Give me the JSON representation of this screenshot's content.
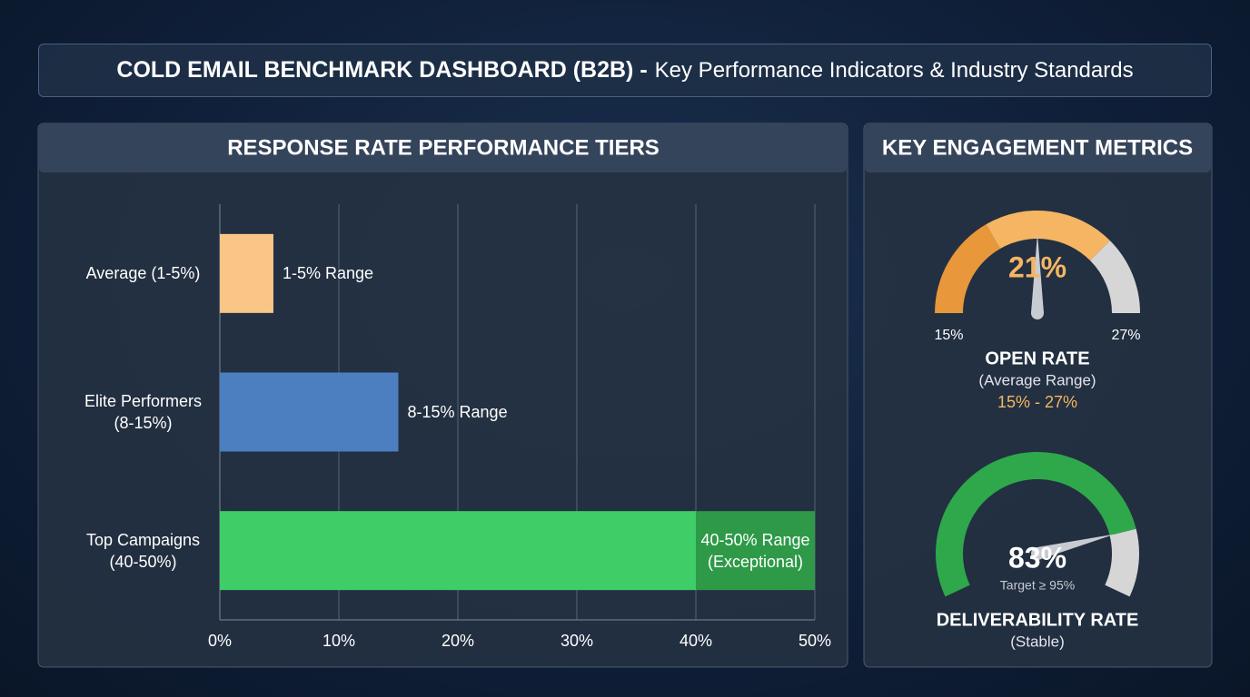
{
  "header": {
    "title": "COLD EMAIL BENCHMARK DASHBOARD (B2B) -",
    "subtitle": "Key Performance Indicators & Industry Standards"
  },
  "right_panel_title": "KEY ENGAGEMENT METRICS",
  "chart_data": [
    {
      "type": "bar",
      "orientation": "horizontal",
      "title": "RESPONSE RATE PERFORMANCE TIERS",
      "categories": [
        "Average (1-5%)",
        "Elite Performers (8-15%)",
        "Top Campaigns (40-50%)"
      ],
      "segments": [
        [
          4.5
        ],
        [
          15
        ],
        [
          40,
          10
        ]
      ],
      "segment_colors": [
        [
          "#f9c688"
        ],
        [
          "#4b7fc0"
        ],
        [
          "#3fcd68",
          "#2e9a48"
        ]
      ],
      "annotations": [
        "1-5% Range",
        "8-15% Range",
        "40-50% Range (Exceptional)"
      ],
      "xlim": [
        0,
        50
      ],
      "xticks": [
        {
          "value": 0,
          "label": "0%"
        },
        {
          "value": 10,
          "label": "10%"
        },
        {
          "value": 20,
          "label": "20%"
        },
        {
          "value": 30,
          "label": "30%"
        },
        {
          "value": 40,
          "label": "40%"
        },
        {
          "value": 50,
          "label": "50%"
        }
      ],
      "grid": true
    },
    {
      "type": "gauge",
      "title": "OPEN RATE",
      "subtitle": "(Average Range)",
      "range_label": "15% - 27%",
      "value": 21,
      "value_label": "21%",
      "ylim": [
        15,
        27
      ],
      "yticks": [
        {
          "value": 15,
          "label": "15%"
        },
        {
          "value": 27,
          "label": "27%"
        }
      ],
      "bands": [
        {
          "from": 15,
          "to": 19,
          "color": "#e8973a"
        },
        {
          "from": 19,
          "to": 24,
          "color": "#f5b563"
        },
        {
          "from": 24,
          "to": 27,
          "color": "#d6d6d6"
        }
      ],
      "label_color": "#f5b563"
    },
    {
      "type": "gauge",
      "title": "DELIVERABILITY RATE",
      "subtitle": "(Stable)",
      "note": "Target ≥ 95%",
      "value": 83,
      "value_label": "83%",
      "ylim": [
        0,
        100
      ],
      "bands": [
        {
          "from": 0,
          "to": 83,
          "color": "#2ea84a"
        },
        {
          "from": 83,
          "to": 100,
          "color": "#d6d6d6"
        }
      ],
      "label_color": "#ffffff"
    }
  ]
}
